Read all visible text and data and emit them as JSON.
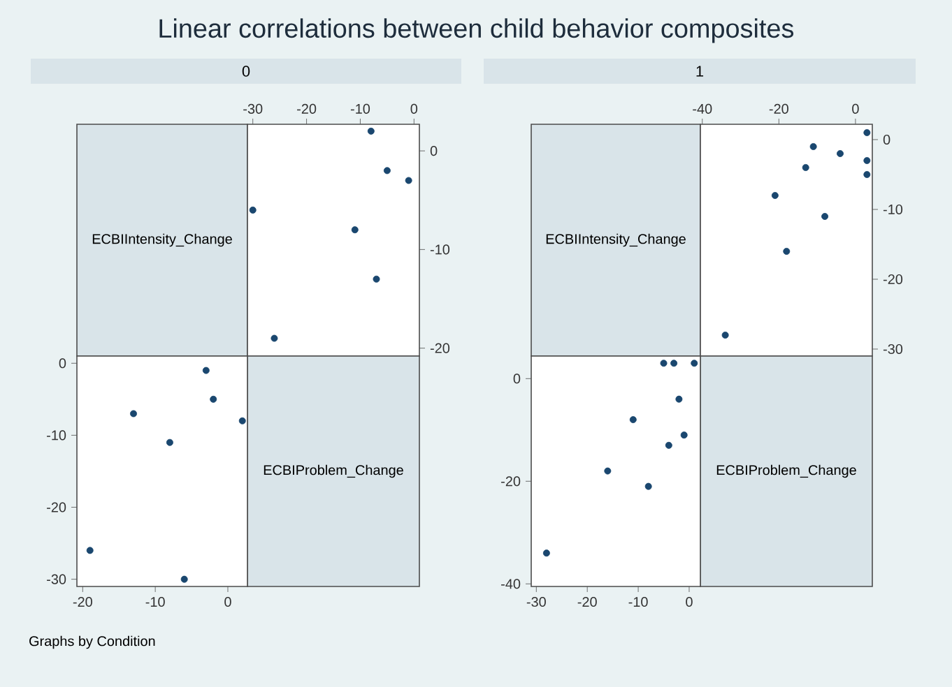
{
  "chart_data": [
    {
      "type": "scatter",
      "title": "Linear correlations between child behavior composites",
      "subtitle": "0",
      "ylabel": "ECBIIntensity_Change",
      "color": "#1a476f",
      "x": [
        -1,
        -5,
        -7,
        -8,
        -11,
        -26,
        -30
      ],
      "values": [
        -3,
        -2,
        -13,
        2,
        -8,
        -19,
        -6
      ],
      "xlim": [
        -31,
        1
      ],
      "ylim": [
        -20.8,
        2.7
      ],
      "xticks": [
        -30,
        -20,
        -10,
        0
      ],
      "yticks": [
        0,
        -10,
        -20
      ]
    },
    {
      "type": "scatter",
      "ylabel": "ECBIProblem_Change",
      "color": "#1a476f",
      "annotations": [
        "Graphs by Condition"
      ],
      "x": [
        -3,
        -2,
        -13,
        2,
        -8,
        -19,
        -6
      ],
      "values": [
        -1,
        -5,
        -7,
        -8,
        -11,
        -26,
        -30
      ],
      "xlim": [
        -20.8,
        2.7
      ],
      "ylim": [
        -31,
        1
      ],
      "xticks": [
        -20,
        -10,
        0
      ],
      "yticks": [
        0,
        -10,
        -20,
        -30
      ]
    },
    {
      "type": "scatter",
      "subtitle": "1",
      "ylabel": "ECBIIntensity_Change",
      "color": "#1a476f",
      "x": [
        3,
        3,
        3,
        -4,
        -8,
        -11,
        -13,
        -18,
        -21,
        -34
      ],
      "values": [
        -5,
        -3,
        1,
        -2,
        -11,
        -1,
        -4,
        -16,
        -8,
        -28
      ],
      "xlim": [
        -40.5,
        4.4
      ],
      "ylim": [
        -31,
        2.2
      ],
      "xticks": [
        -40,
        -20,
        0
      ],
      "yticks": [
        0,
        -10,
        -20,
        -30
      ]
    },
    {
      "type": "scatter",
      "ylabel": "ECBIProblem_Change",
      "color": "#1a476f",
      "x": [
        -5,
        -3,
        1,
        -2,
        -11,
        -1,
        -4,
        -16,
        -8,
        -28
      ],
      "values": [
        3,
        3,
        3,
        -4,
        -8,
        -11,
        -13,
        -18,
        -21,
        -34
      ],
      "xlim": [
        -31,
        2.2
      ],
      "ylim": [
        -40.5,
        4.4
      ],
      "xticks": [
        -30,
        -20,
        -10,
        0
      ],
      "yticks": [
        0,
        -20,
        -40
      ]
    }
  ]
}
